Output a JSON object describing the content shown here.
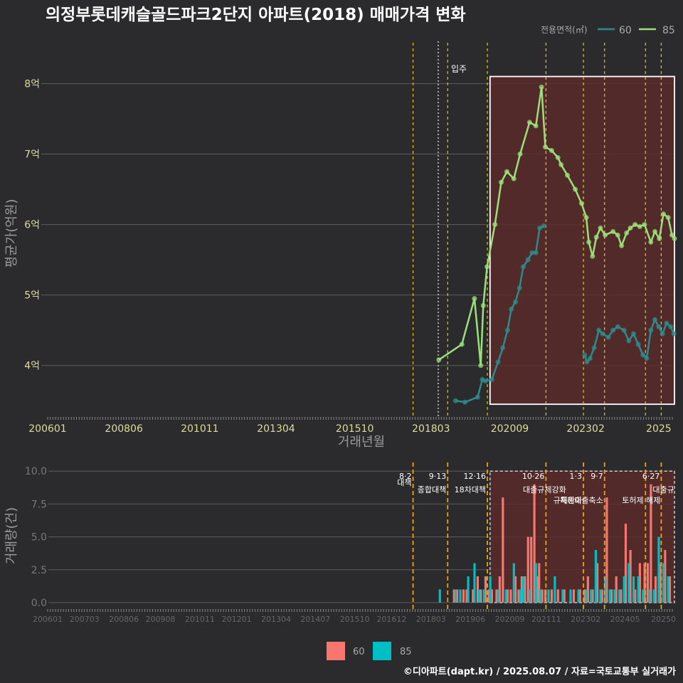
{
  "title": "의정부롯데캐슬골드파크2단지 아파트(2018) 매매가격 변화",
  "footer": "©디아파트(dapt.kr) / 2025.08.07 / 자료=국토교통부 실거래가",
  "colors": {
    "background": "#2b2b2d",
    "series60_line": "#2e8b8b",
    "series85_line": "#9be07a",
    "bar60": "#f8766d",
    "bar85": "#00bfc4",
    "event_line": "#e6c619",
    "highlight_fill": "#5a2a2a"
  },
  "chart_data": [
    {
      "type": "line",
      "title": "의정부롯데캐슬골드파크2단지 아파트(2018) 매매가격 변화",
      "xlabel": "거래년월",
      "ylabel": "평균가(억원)",
      "x_tick_labels": [
        "200601",
        "200806",
        "201011",
        "201304",
        "201510",
        "201803",
        "202009",
        "202302",
        "2025"
      ],
      "y_ticks": [
        4,
        5,
        6,
        7,
        8
      ],
      "y_tick_labels": [
        "4억",
        "5억",
        "6억",
        "7억",
        "8억"
      ],
      "xlim": [
        2006.0,
        2025.9
      ],
      "ylim": [
        3.25,
        8.6
      ],
      "legend": {
        "title": "전용면적(㎡)",
        "position": "top-right",
        "entries": [
          "60",
          "85"
        ]
      },
      "annotation": "입주",
      "move_in": 2018.4,
      "event_dates": [
        2017.6,
        2018.7,
        2019.96,
        2021.82,
        2023.01,
        2023.68,
        2024.98,
        2025.48
      ],
      "highlight_range": [
        2020.0,
        2025.9,
        3.45,
        8.1
      ],
      "series": [
        {
          "name": "85",
          "x": [
            2018.42,
            2019.15,
            2019.55,
            2019.75,
            2019.83,
            2019.95,
            2020.2,
            2020.4,
            2020.58,
            2020.8,
            2021.0,
            2021.3,
            2021.5,
            2021.68,
            2021.8,
            2022.0,
            2022.2,
            2022.3,
            2022.5,
            2022.75,
            2022.95,
            2023.1,
            2023.18,
            2023.3,
            2023.42,
            2023.55,
            2023.7,
            2023.95,
            2024.1,
            2024.22,
            2024.38,
            2024.5,
            2024.65,
            2024.8,
            2024.95,
            2025.15,
            2025.28,
            2025.42,
            2025.55,
            2025.7,
            2025.82,
            2025.9
          ],
          "values": [
            4.08,
            4.3,
            4.95,
            4.0,
            4.85,
            5.4,
            6.0,
            6.6,
            6.75,
            6.65,
            7.0,
            7.45,
            7.4,
            7.95,
            7.1,
            7.05,
            6.95,
            6.85,
            6.7,
            6.5,
            6.3,
            6.1,
            5.75,
            5.55,
            5.82,
            5.95,
            5.85,
            5.9,
            5.85,
            5.7,
            5.88,
            5.95,
            6.0,
            5.97,
            6.0,
            5.75,
            5.9,
            5.8,
            6.15,
            6.1,
            5.85,
            5.8
          ]
        },
        {
          "name": "60",
          "x": [
            2018.95,
            2019.25,
            2019.65,
            2019.8,
            2019.9,
            2020.1,
            2020.3,
            2020.45,
            2020.6,
            2020.72,
            2020.85,
            2020.98,
            2021.1,
            2021.25,
            2021.38,
            2021.5,
            2021.62,
            2021.75,
            2023.05,
            2023.12,
            2023.22,
            2023.35,
            2023.5,
            2023.62,
            2023.8,
            2023.95,
            2024.1,
            2024.3,
            2024.45,
            2024.6,
            2024.75,
            2024.9,
            2025.02,
            2025.15,
            2025.28,
            2025.4,
            2025.52,
            2025.65,
            2025.78,
            2025.88
          ],
          "values": [
            3.5,
            3.48,
            3.55,
            3.8,
            3.78,
            3.8,
            4.05,
            4.25,
            4.5,
            4.8,
            4.9,
            5.1,
            5.4,
            5.5,
            5.6,
            5.6,
            5.95,
            5.98,
            4.15,
            4.05,
            4.1,
            4.25,
            4.5,
            4.45,
            4.4,
            4.5,
            4.55,
            4.5,
            4.35,
            4.45,
            4.3,
            4.15,
            4.1,
            4.5,
            4.65,
            4.55,
            4.45,
            4.6,
            4.55,
            4.45
          ]
        }
      ]
    },
    {
      "type": "bar",
      "xlabel": "",
      "ylabel": "거래량(건)",
      "x_tick_labels": [
        "200601",
        "200703",
        "200806",
        "200908",
        "201011",
        "201201",
        "201304",
        "201407",
        "201510",
        "201612",
        "201803",
        "201906",
        "202009",
        "202111",
        "202302",
        "202405",
        "20250"
      ],
      "y_ticks": [
        0,
        2.5,
        5,
        7.5,
        10
      ],
      "y_tick_labels": [
        "0.0",
        "2.5",
        "5.0",
        "7.5",
        "10.0"
      ],
      "xlim": [
        2006.0,
        2025.9
      ],
      "ylim": [
        0,
        10.5
      ],
      "legend": {
        "position": "bottom",
        "entries": [
          "60",
          "85"
        ]
      },
      "events": [
        {
          "date": "8·2",
          "label": "대책",
          "x": 2017.6
        },
        {
          "date": "9·13",
          "label": "종합대책",
          "x": 2018.7
        },
        {
          "date": "12·16",
          "label": "18차대책",
          "x": 2019.96
        },
        {
          "date": "10·26",
          "label": "대출규제강화",
          "x": 2021.82
        },
        {
          "date": "1·3",
          "label": "규제완화",
          "x": 2023.01
        },
        {
          "date": "9·7",
          "label": "특례대출축소",
          "x": 2023.68
        },
        {
          "date": "",
          "label": "토허제 해제",
          "x": 2024.98
        },
        {
          "date": "6·27",
          "label": "대출규",
          "x": 2025.48
        }
      ],
      "highlight_range": [
        2020.0,
        2025.9,
        0,
        10.0
      ],
      "series": [
        {
          "name": "60",
          "x": [
            2018.9,
            2019.0,
            2019.2,
            2019.3,
            2019.5,
            2019.65,
            2019.75,
            2019.9,
            2020.0,
            2020.1,
            2020.25,
            2020.35,
            2020.45,
            2020.6,
            2020.7,
            2020.85,
            2020.95,
            2021.05,
            2021.15,
            2021.25,
            2021.35,
            2021.45,
            2021.55,
            2021.6,
            2021.7,
            2021.8,
            2022.0,
            2022.2,
            2022.4,
            2022.7,
            2022.9,
            2023.05,
            2023.15,
            2023.3,
            2023.45,
            2023.6,
            2023.75,
            2023.9,
            2024.05,
            2024.2,
            2024.35,
            2024.5,
            2024.65,
            2024.8,
            2024.95,
            2025.05,
            2025.15,
            2025.3,
            2025.45,
            2025.6,
            2025.75
          ],
          "values": [
            1,
            1,
            1,
            1,
            1,
            2,
            1,
            2,
            1,
            1,
            1,
            2,
            8,
            1,
            1,
            2,
            1,
            2,
            2,
            5,
            5,
            9,
            2,
            3,
            1,
            1,
            1,
            1,
            1,
            1,
            1,
            1,
            2,
            1,
            3,
            1,
            8,
            1,
            2,
            1,
            6,
            4,
            1,
            3,
            3,
            3,
            9,
            2,
            3,
            4,
            2
          ]
        },
        {
          "name": "85",
          "x": [
            2018.45,
            2018.95,
            2019.1,
            2019.35,
            2019.55,
            2019.7,
            2019.85,
            2020.05,
            2020.3,
            2020.55,
            2020.8,
            2021.0,
            2021.1,
            2021.3,
            2021.5,
            2021.65,
            2021.9,
            2022.1,
            2022.35,
            2022.6,
            2022.85,
            2023.1,
            2023.25,
            2023.4,
            2023.55,
            2023.7,
            2023.85,
            2024.0,
            2024.15,
            2024.3,
            2024.45,
            2024.6,
            2024.75,
            2024.9,
            2025.1,
            2025.25,
            2025.4,
            2025.55,
            2025.7
          ],
          "values": [
            1,
            1,
            1,
            2,
            3,
            1,
            1,
            2,
            1,
            1,
            3,
            1,
            2,
            1,
            3,
            1,
            1,
            2,
            1,
            1,
            1,
            1,
            1,
            4,
            1,
            2,
            1,
            1,
            1,
            2,
            3,
            2,
            2,
            1,
            1,
            1,
            5,
            3,
            2
          ]
        }
      ]
    }
  ]
}
